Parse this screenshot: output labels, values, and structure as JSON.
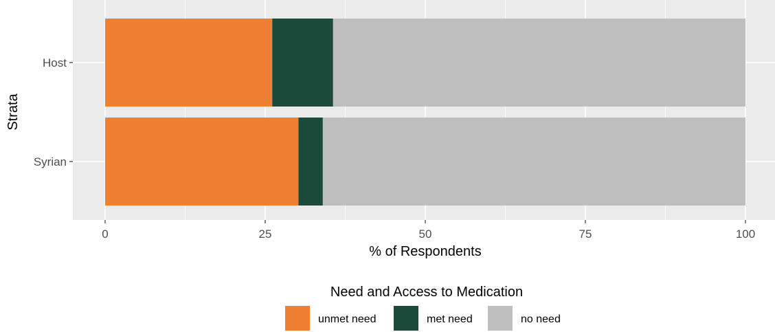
{
  "chart_data": {
    "type": "bar",
    "orientation": "horizontal",
    "stacked": true,
    "categories": [
      "Host",
      "Syrian"
    ],
    "series": [
      {
        "name": "unmet need",
        "values": [
          26.1,
          30.2
        ],
        "color": "#ed8033"
      },
      {
        "name": "met need",
        "values": [
          9.5,
          3.8
        ],
        "color": "#1b4a3a"
      },
      {
        "name": "no need",
        "values": [
          64.4,
          66.0
        ],
        "color": "#bebebe"
      }
    ],
    "xlabel": "% of Respondents",
    "ylabel": "Strata",
    "xlim": [
      0,
      100
    ],
    "xticks": [
      "0",
      "25",
      "50",
      "75",
      "100"
    ],
    "grid": true,
    "panel_background": "#ebebeb",
    "legend": {
      "title": "Need and Access to Medication",
      "position": "bottom",
      "labels": [
        "unmet need",
        "met need",
        "no need"
      ]
    }
  }
}
